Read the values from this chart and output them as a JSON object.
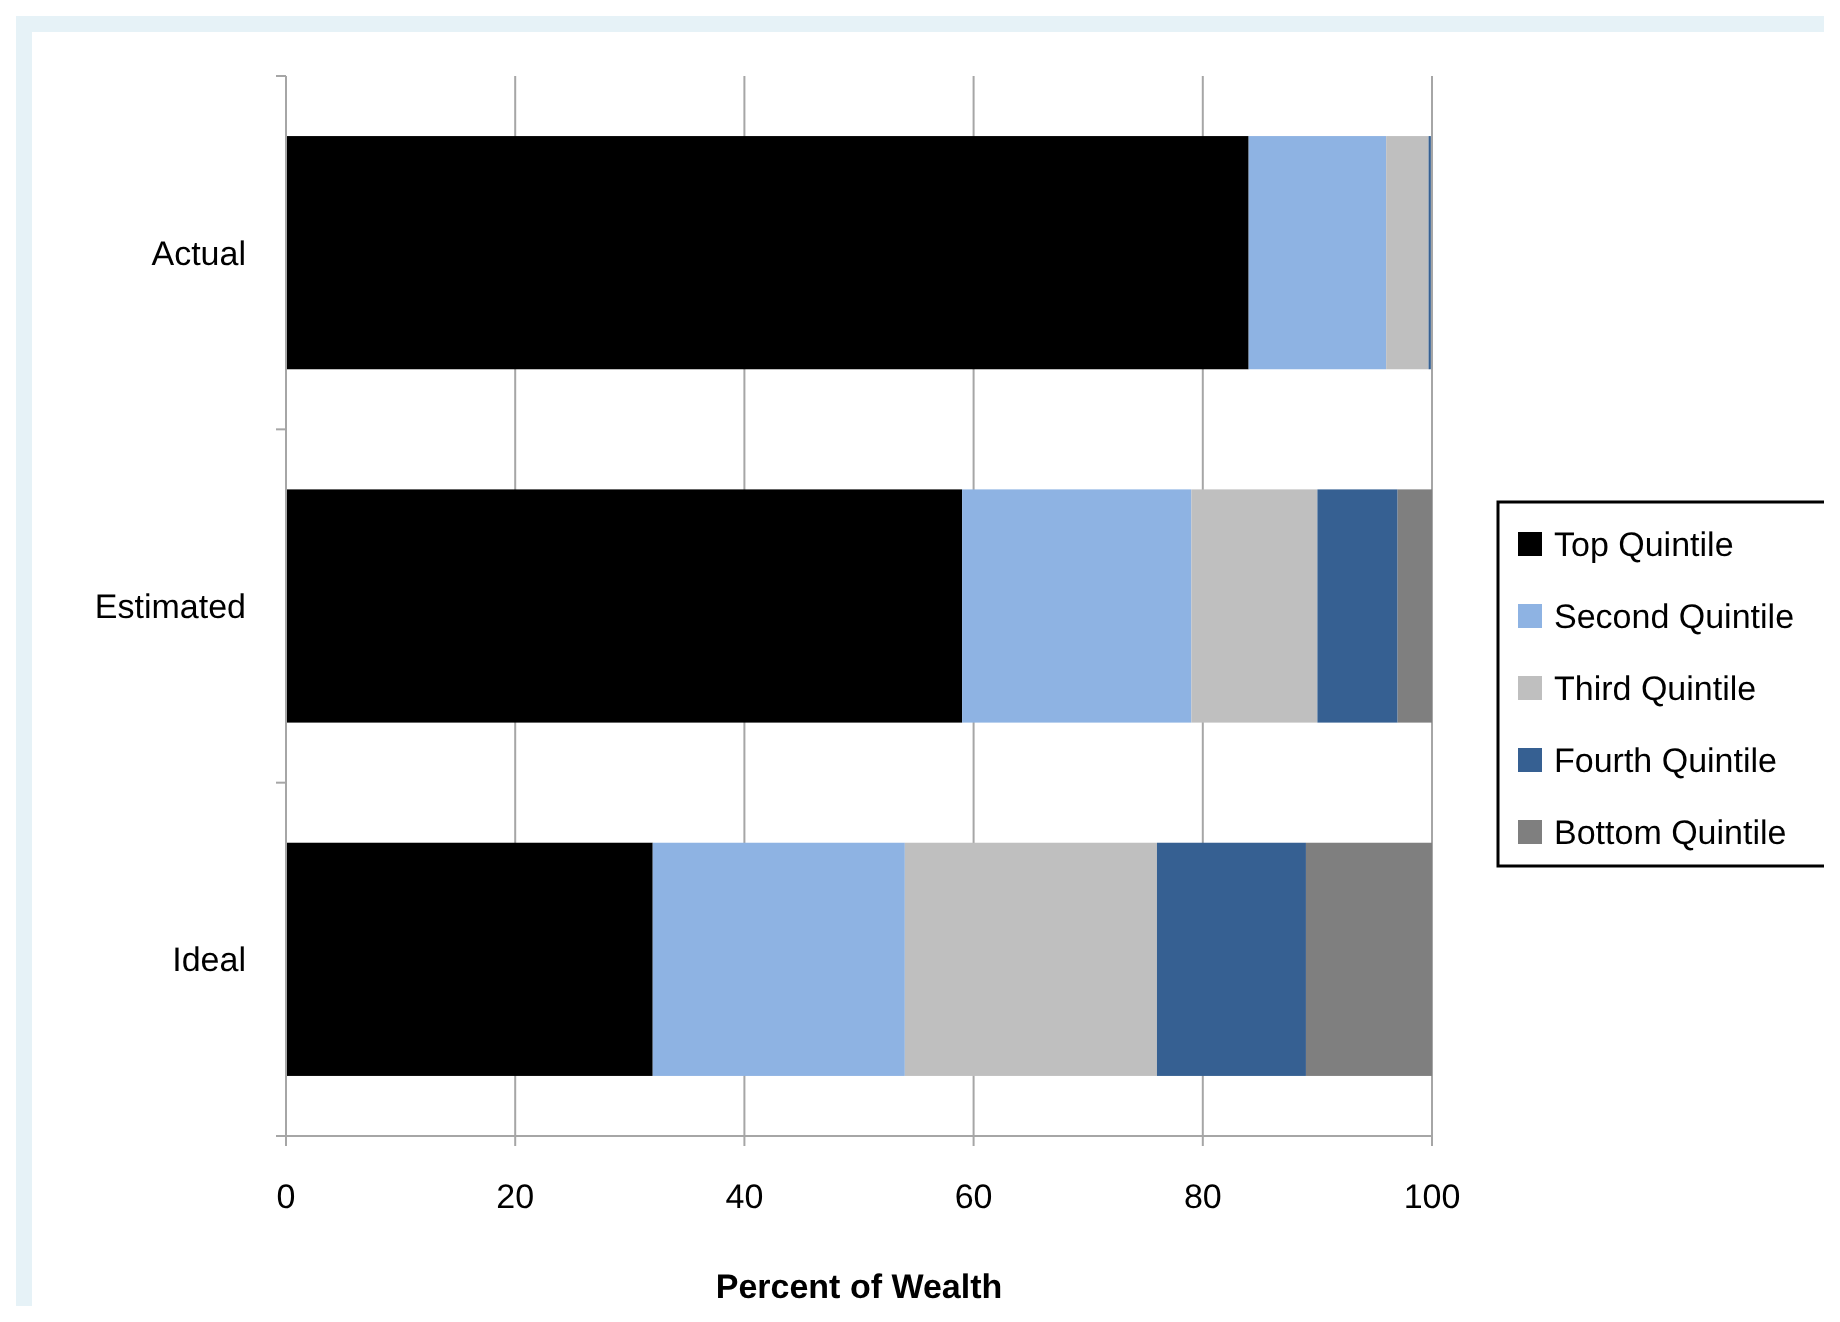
{
  "chart_data": {
    "type": "bar",
    "orientation": "horizontal",
    "stacked": true,
    "xlabel": "Percent of Wealth",
    "categories": [
      "Actual",
      "Estimated",
      "Ideal"
    ],
    "series": [
      {
        "name": "Top Quintile",
        "color": "#000000",
        "values": [
          84,
          59,
          32
        ]
      },
      {
        "name": "Second Quintile",
        "color": "#8eb3e3",
        "values": [
          12,
          20,
          22
        ]
      },
      {
        "name": "Third Quintile",
        "color": "#bfbfbf",
        "values": [
          3.7,
          11,
          22
        ]
      },
      {
        "name": "Fourth Quintile",
        "color": "#366092",
        "values": [
          0.2,
          7,
          13
        ]
      },
      {
        "name": "Bottom Quintile",
        "color": "#7f7f7f",
        "values": [
          null,
          3,
          11
        ]
      }
    ],
    "xlim": [
      0,
      100
    ],
    "xticks": [
      0,
      20,
      40,
      60,
      80,
      100
    ],
    "grid": "x",
    "legend": "right"
  }
}
